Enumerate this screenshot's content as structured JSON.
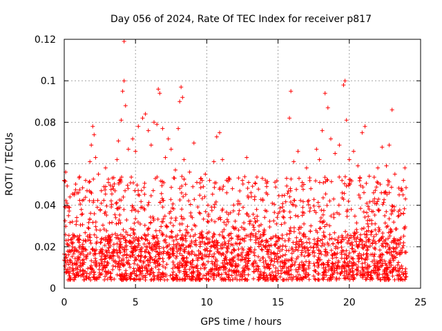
{
  "chart_data": {
    "type": "scatter",
    "title": "Day 056 of 2024, Rate Of TEC Index for receiver p817",
    "xlabel": "GPS time / hours",
    "ylabel": "ROTI / TECUs",
    "xlim": [
      0,
      25
    ],
    "ylim": [
      0,
      0.12
    ],
    "xticks": [
      "0",
      "5",
      "10",
      "15",
      "20",
      "25"
    ],
    "yticks": [
      "0",
      "0.02",
      "0.04",
      "0.06",
      "0.08",
      "0.1",
      "0.12"
    ],
    "grid": true,
    "marker": "plus",
    "color": "#ff0000",
    "points": [
      [
        0.0,
        0.052
      ],
      [
        0.1,
        0.056
      ],
      [
        0.2,
        0.041
      ],
      [
        0.3,
        0.035
      ],
      [
        0.4,
        0.044
      ],
      [
        0.5,
        0.022
      ],
      [
        1.0,
        0.046
      ],
      [
        1.2,
        0.038
      ],
      [
        1.5,
        0.052
      ],
      [
        1.6,
        0.047
      ],
      [
        1.8,
        0.061
      ],
      [
        1.9,
        0.069
      ],
      [
        2.0,
        0.078
      ],
      [
        2.1,
        0.074
      ],
      [
        2.2,
        0.063
      ],
      [
        2.4,
        0.055
      ],
      [
        2.6,
        0.041
      ],
      [
        2.9,
        0.058
      ],
      [
        3.1,
        0.051
      ],
      [
        3.4,
        0.049
      ],
      [
        3.7,
        0.062
      ],
      [
        3.8,
        0.071
      ],
      [
        4.0,
        0.081
      ],
      [
        4.1,
        0.095
      ],
      [
        4.2,
        0.1
      ],
      [
        4.2,
        0.119
      ],
      [
        4.3,
        0.088
      ],
      [
        4.5,
        0.067
      ],
      [
        4.8,
        0.072
      ],
      [
        5.0,
        0.066
      ],
      [
        5.2,
        0.078
      ],
      [
        5.5,
        0.082
      ],
      [
        5.7,
        0.084
      ],
      [
        5.9,
        0.076
      ],
      [
        6.1,
        0.069
      ],
      [
        6.3,
        0.08
      ],
      [
        6.5,
        0.079
      ],
      [
        6.6,
        0.096
      ],
      [
        6.7,
        0.094
      ],
      [
        6.9,
        0.077
      ],
      [
        7.1,
        0.063
      ],
      [
        7.3,
        0.072
      ],
      [
        7.5,
        0.067
      ],
      [
        7.8,
        0.057
      ],
      [
        8.0,
        0.077
      ],
      [
        8.1,
        0.09
      ],
      [
        8.2,
        0.097
      ],
      [
        8.3,
        0.092
      ],
      [
        8.4,
        0.062
      ],
      [
        8.8,
        0.056
      ],
      [
        9.1,
        0.07
      ],
      [
        9.3,
        0.051
      ],
      [
        9.6,
        0.053
      ],
      [
        9.9,
        0.055
      ],
      [
        10.2,
        0.052
      ],
      [
        10.5,
        0.061
      ],
      [
        10.7,
        0.073
      ],
      [
        10.9,
        0.075
      ],
      [
        11.1,
        0.062
      ],
      [
        11.4,
        0.046
      ],
      [
        11.8,
        0.048
      ],
      [
        12.2,
        0.042
      ],
      [
        12.5,
        0.052
      ],
      [
        12.8,
        0.063
      ],
      [
        13.1,
        0.046
      ],
      [
        13.5,
        0.038
      ],
      [
        13.9,
        0.053
      ],
      [
        14.2,
        0.049
      ],
      [
        14.6,
        0.041
      ],
      [
        15.0,
        0.036
      ],
      [
        15.4,
        0.034
      ],
      [
        15.6,
        0.053
      ],
      [
        15.8,
        0.082
      ],
      [
        15.9,
        0.095
      ],
      [
        16.1,
        0.061
      ],
      [
        16.4,
        0.066
      ],
      [
        16.7,
        0.051
      ],
      [
        17.0,
        0.058
      ],
      [
        17.3,
        0.048
      ],
      [
        17.7,
        0.067
      ],
      [
        17.9,
        0.062
      ],
      [
        18.1,
        0.076
      ],
      [
        18.3,
        0.094
      ],
      [
        18.5,
        0.087
      ],
      [
        18.7,
        0.072
      ],
      [
        19.0,
        0.065
      ],
      [
        19.3,
        0.069
      ],
      [
        19.6,
        0.098
      ],
      [
        19.7,
        0.1
      ],
      [
        19.8,
        0.081
      ],
      [
        20.0,
        0.062
      ],
      [
        20.3,
        0.066
      ],
      [
        20.6,
        0.059
      ],
      [
        20.9,
        0.075
      ],
      [
        21.1,
        0.078
      ],
      [
        21.4,
        0.054
      ],
      [
        21.7,
        0.046
      ],
      [
        22.0,
        0.058
      ],
      [
        22.3,
        0.068
      ],
      [
        22.6,
        0.059
      ],
      [
        22.8,
        0.069
      ],
      [
        23.0,
        0.086
      ],
      [
        23.2,
        0.055
      ],
      [
        23.5,
        0.045
      ],
      [
        23.8,
        0.052
      ],
      [
        23.9,
        0.058
      ]
    ]
  }
}
